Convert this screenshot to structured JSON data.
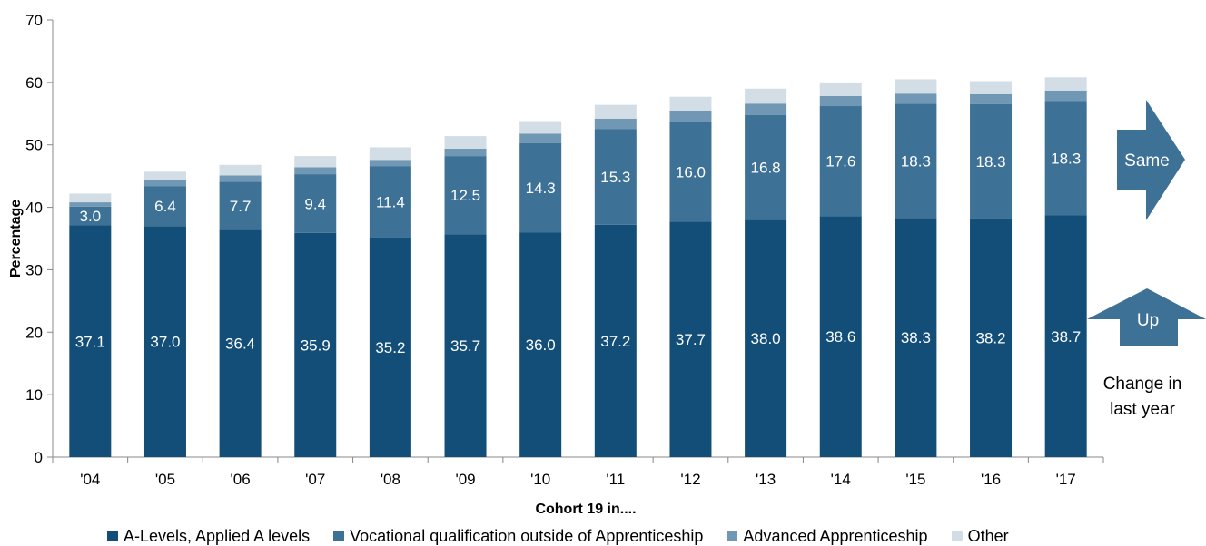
{
  "chart_data": {
    "type": "bar",
    "stacked": true,
    "title": "",
    "xlabel": "Cohort 19 in....",
    "ylabel": "Percentage",
    "ylim": [
      0,
      70
    ],
    "yticks": [
      0,
      10,
      20,
      30,
      40,
      50,
      60,
      70
    ],
    "categories": [
      "'04",
      "'05",
      "'06",
      "'07",
      "'08",
      "'09",
      "'10",
      "'11",
      "'12",
      "'13",
      "'14",
      "'15",
      "'16",
      "'17"
    ],
    "series": [
      {
        "name": "A-Levels, Applied A levels",
        "color": "#124e78",
        "values": [
          37.1,
          37.0,
          36.4,
          35.9,
          35.2,
          35.7,
          36.0,
          37.2,
          37.7,
          38.0,
          38.6,
          38.3,
          38.2,
          38.7
        ],
        "labels": [
          "37.1",
          "37.0",
          "36.4",
          "35.9",
          "35.2",
          "35.7",
          "36.0",
          "37.2",
          "37.7",
          "38.0",
          "38.6",
          "38.3",
          "38.2",
          "38.7"
        ]
      },
      {
        "name": "Vocational qualification outside of Apprenticeship",
        "color": "#3e7196",
        "values": [
          3.0,
          6.4,
          7.7,
          9.4,
          11.4,
          12.5,
          14.3,
          15.3,
          16.0,
          16.8,
          17.6,
          18.3,
          18.3,
          18.3
        ],
        "labels": [
          "3.0",
          "6.4",
          "7.7",
          "9.4",
          "11.4",
          "12.5",
          "14.3",
          "15.3",
          "16.0",
          "16.8",
          "17.6",
          "18.3",
          "18.3",
          "18.3"
        ]
      },
      {
        "name": "Advanced Apprenticeship",
        "color": "#7097b3",
        "values": [
          0.7,
          0.9,
          1.0,
          1.1,
          1.0,
          1.2,
          1.5,
          1.7,
          1.8,
          1.8,
          1.6,
          1.6,
          1.6,
          1.7
        ]
      },
      {
        "name": "Other",
        "color": "#d3dde6",
        "values": [
          1.4,
          1.4,
          1.7,
          1.8,
          2.0,
          2.0,
          2.0,
          2.2,
          2.2,
          2.4,
          2.2,
          2.3,
          2.1,
          2.1
        ]
      }
    ],
    "legend_position": "bottom",
    "grid": false
  },
  "indicators": {
    "same_label": "Same",
    "up_label": "Up",
    "note": "Change in last year",
    "note_line1": "Change in",
    "note_line2": "last year",
    "color": "#3e7196"
  }
}
